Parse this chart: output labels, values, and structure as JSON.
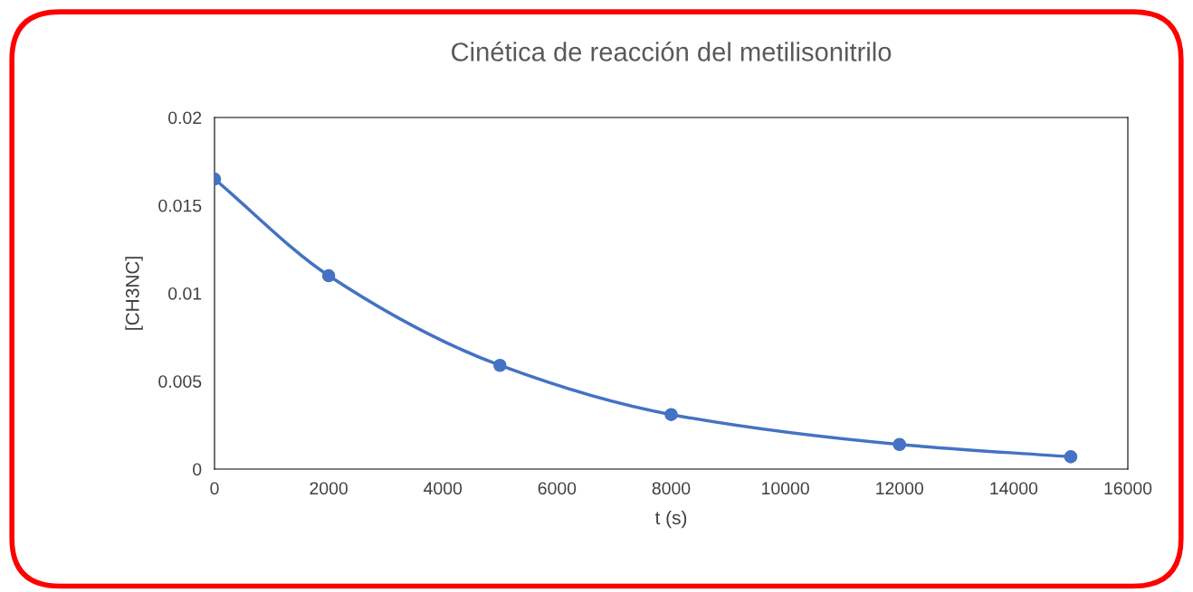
{
  "chart_data": {
    "type": "line",
    "title": "Cinética de reacción del metilisonitrilo",
    "xlabel": "t (s)",
    "ylabel": "[CH3NC]",
    "x": [
      0,
      2000,
      5000,
      8000,
      12000,
      15000
    ],
    "series": [
      {
        "color": "#4472c4",
        "values": [
          0.0165,
          0.011,
          0.0059,
          0.0031,
          0.0014,
          0.0007
        ]
      }
    ],
    "xlim": [
      0,
      16000
    ],
    "xticks": [
      0,
      2000,
      4000,
      6000,
      8000,
      10000,
      12000,
      14000,
      16000
    ],
    "ylim": [
      0,
      0.02
    ],
    "yticks": [
      0,
      0.005,
      0.01,
      0.015,
      0.02
    ],
    "grid": false,
    "legend": false,
    "marker": "circle",
    "line_style": "solid"
  }
}
